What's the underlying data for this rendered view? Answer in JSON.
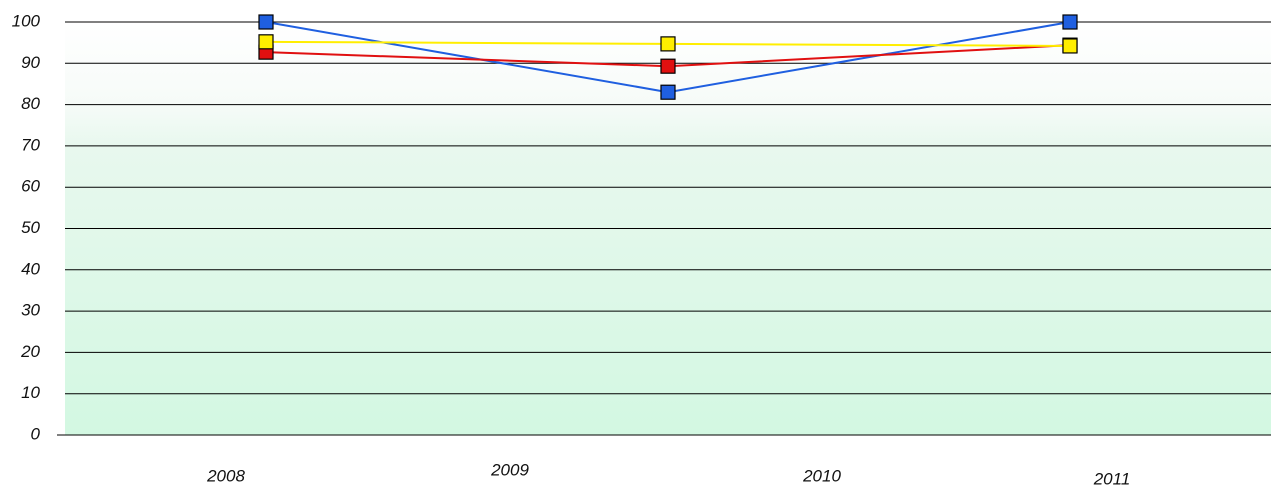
{
  "chart_data": {
    "type": "line",
    "categories": [
      null,
      null,
      null
    ],
    "x_labels": [
      "2008",
      "2009",
      "2010",
      "2011"
    ],
    "series": [
      {
        "name": null,
        "color": "#1f5fe0",
        "values": [
          100,
          83,
          100
        ]
      },
      {
        "name": null,
        "color": "#e01010",
        "values": [
          92.7,
          89.3,
          94.4
        ]
      },
      {
        "name": null,
        "color": "#ffee00",
        "values": [
          95.2,
          94.7,
          94.2
        ]
      }
    ],
    "ylim": [
      0,
      100
    ],
    "yticks": [
      0,
      10,
      20,
      30,
      40,
      50,
      60,
      70,
      80,
      90,
      100
    ],
    "grid": true
  }
}
